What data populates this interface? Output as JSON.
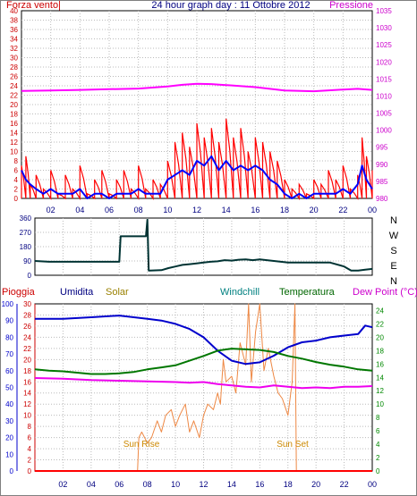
{
  "title": "24 hour graph day : 11 Ottobre 2012",
  "colors": {
    "wind_gust": "#ff0000",
    "wind_avg": "#0000ff",
    "pressure": "#ff00ff",
    "direction": "#003333",
    "humidity": "#0000cc",
    "solar": "#ee8844",
    "temperature": "#007700",
    "dewpoint": "#ee00ee",
    "rain": "#ff0000",
    "grid": "#bbbbbb"
  },
  "x_labels": [
    "02",
    "04",
    "06",
    "08",
    "10",
    "12",
    "14",
    "16",
    "18",
    "20",
    "22",
    "00"
  ],
  "chart_data": [
    {
      "type": "line",
      "left_axis_label": "Forza vento|",
      "right_axis_label": "Pressione",
      "x_range": [
        0,
        24
      ],
      "y_left_range": [
        0,
        40
      ],
      "y_left_ticks": [
        0,
        2,
        4,
        6,
        8,
        10,
        12,
        14,
        16,
        18,
        20,
        22,
        24,
        26,
        28,
        30,
        32,
        34,
        36,
        38,
        40
      ],
      "y_right_range": [
        980,
        1035
      ],
      "y_right_ticks": [
        980,
        985,
        990,
        995,
        1000,
        1005,
        1010,
        1015,
        1020,
        1025,
        1030,
        1035
      ],
      "grid": true,
      "series": [
        {
          "name": "Pressione",
          "axis": "right",
          "x": [
            0,
            2,
            4,
            6,
            8,
            10,
            11,
            12,
            13,
            14,
            16,
            18,
            20,
            22,
            23,
            24
          ],
          "values": [
            1011.5,
            1011.6,
            1011.8,
            1012.0,
            1012.2,
            1012.8,
            1013.3,
            1013.6,
            1013.5,
            1013.2,
            1012.6,
            1011.6,
            1011.4,
            1011.9,
            1012.1,
            1011.8
          ]
        },
        {
          "name": "wind_gust",
          "axis": "left",
          "x": [
            0,
            0.3,
            0.6,
            1,
            1.5,
            2,
            2.5,
            3,
            3.5,
            4,
            4.5,
            5,
            5.5,
            6,
            6.5,
            7,
            7.5,
            8,
            8.5,
            9,
            9.5,
            10,
            10.5,
            11,
            11.5,
            12,
            12.5,
            13,
            13.5,
            14,
            14.5,
            15,
            15.5,
            16,
            16.5,
            17,
            17.5,
            18,
            18.5,
            19,
            19.5,
            20,
            20.5,
            21,
            21.5,
            22,
            22.5,
            23,
            23.3,
            23.6,
            24
          ],
          "values": [
            7,
            9,
            3,
            5,
            2,
            6,
            1,
            5,
            2,
            7,
            1,
            4,
            6,
            1,
            4,
            6,
            2,
            7,
            2,
            4,
            3,
            8,
            12,
            14,
            11,
            16,
            13,
            15,
            12,
            17,
            13,
            15,
            10,
            13,
            12,
            10,
            8,
            4,
            2,
            3,
            1,
            4,
            3,
            6,
            4,
            7,
            2,
            5,
            13,
            9,
            6
          ]
        },
        {
          "name": "wind_avg",
          "axis": "left",
          "x": [
            0,
            0.3,
            0.6,
            1,
            1.5,
            2,
            2.5,
            3,
            3.5,
            4,
            4.5,
            5,
            5.5,
            6,
            6.5,
            7,
            7.5,
            8,
            8.5,
            9,
            9.5,
            10,
            10.5,
            11,
            11.5,
            12,
            12.5,
            13,
            13.5,
            14,
            14.5,
            15,
            15.5,
            16,
            16.5,
            17,
            17.5,
            18,
            18.5,
            19,
            19.5,
            20,
            20.5,
            21,
            21.5,
            22,
            22.5,
            23,
            23.3,
            23.6,
            24
          ],
          "values": [
            6,
            4,
            3,
            2,
            1,
            2,
            1,
            1,
            1,
            2,
            0,
            1,
            1,
            0,
            1,
            1,
            1,
            2,
            1,
            1,
            1,
            4,
            5,
            6,
            5,
            8,
            7,
            9,
            6,
            8,
            6,
            7,
            6,
            7,
            6,
            4,
            3,
            1,
            0,
            1,
            0,
            1,
            1,
            1,
            1,
            2,
            1,
            3,
            7,
            4,
            2
          ]
        }
      ]
    },
    {
      "type": "line",
      "y_range": [
        0,
        360
      ],
      "y_ticks": [
        0,
        90,
        180,
        270,
        360
      ],
      "compass": [
        "N",
        "W",
        "S",
        "E",
        "N"
      ],
      "grid": true,
      "series": [
        {
          "name": "direction",
          "x": [
            0,
            1,
            2,
            3,
            4,
            5,
            6,
            6.1,
            7,
            7.9,
            8,
            8.1,
            8.2,
            9,
            9.5,
            10,
            10.5,
            11,
            11.5,
            12,
            12.5,
            13,
            13.5,
            14,
            14.5,
            15,
            15.5,
            16,
            16.5,
            17,
            17.5,
            18,
            19,
            20,
            21,
            22,
            22.5,
            23,
            23.5,
            24
          ],
          "values": [
            90,
            85,
            85,
            85,
            85,
            85,
            85,
            245,
            245,
            245,
            350,
            30,
            30,
            32,
            45,
            55,
            65,
            70,
            75,
            80,
            85,
            88,
            95,
            92,
            98,
            100,
            95,
            100,
            95,
            90,
            85,
            80,
            80,
            80,
            80,
            55,
            30,
            30,
            35,
            40
          ]
        }
      ]
    },
    {
      "type": "line",
      "legend": [
        "Pioggia",
        "Umidita",
        "Solar",
        "Windchill",
        "Temperatura",
        "Dew Point (°C)"
      ],
      "annotations": [
        "Sun Rise",
        "Sun Set"
      ],
      "y_humidity_range": [
        0,
        100
      ],
      "y_humidity_ticks": [
        0,
        10,
        20,
        30,
        40,
        50,
        60,
        70,
        80,
        90,
        100
      ],
      "y_rain_range": [
        0,
        30
      ],
      "y_rain_ticks": [
        0,
        2,
        4,
        6,
        8,
        10,
        12,
        14,
        16,
        18,
        20,
        22,
        24,
        26,
        28,
        30
      ],
      "y_temp_range": [
        0,
        25
      ],
      "y_temp_ticks": [
        0,
        2,
        4,
        6,
        8,
        10,
        12,
        14,
        16,
        18,
        20,
        22,
        24
      ],
      "grid": true,
      "series": [
        {
          "name": "Umidita",
          "axis": "humidity",
          "x": [
            0,
            2,
            4,
            6,
            8,
            9,
            10,
            11,
            12,
            13,
            14,
            15,
            16,
            17,
            18,
            19,
            20,
            21,
            22,
            23,
            23.5,
            24
          ],
          "values": [
            91,
            91,
            92,
            93,
            91,
            90,
            88,
            85,
            80,
            72,
            66,
            64,
            65,
            69,
            74,
            77,
            78,
            80,
            81,
            82,
            87,
            86
          ]
        },
        {
          "name": "Temperatura",
          "axis": "temp",
          "x": [
            0,
            1,
            2,
            3,
            4,
            5,
            6,
            7,
            8,
            9,
            10,
            11,
            12,
            13,
            14,
            15,
            16,
            17,
            18,
            19,
            20,
            21,
            22,
            23,
            24
          ],
          "values": [
            15.2,
            15.0,
            14.9,
            14.7,
            14.5,
            14.5,
            14.6,
            14.8,
            15.2,
            15.5,
            15.8,
            16.5,
            17.2,
            18.0,
            18.3,
            18.2,
            18.1,
            17.8,
            17.2,
            16.8,
            16.3,
            15.9,
            15.6,
            15.2,
            15.0
          ]
        },
        {
          "name": "Dew Point",
          "axis": "temp",
          "x": [
            0,
            2,
            4,
            6,
            8,
            10,
            11,
            12,
            13,
            14,
            15,
            16,
            17,
            18,
            19,
            20,
            21,
            22,
            23,
            24
          ],
          "values": [
            13.9,
            13.8,
            13.6,
            13.5,
            13.4,
            13.3,
            13.2,
            13.3,
            13.0,
            12.8,
            12.6,
            12.5,
            12.8,
            12.6,
            12.4,
            12.5,
            12.4,
            12.6,
            12.6,
            12.7
          ]
        },
        {
          "name": "Solar",
          "axis": "rain",
          "x": [
            7.3,
            7.4,
            7.6,
            8,
            8.3,
            8.7,
            9,
            9.3,
            9.7,
            10,
            10.3,
            10.7,
            11,
            11.3,
            11.7,
            12,
            12.3,
            12.7,
            13,
            13.2,
            13.4,
            13.6,
            14,
            14.3,
            14.6,
            15,
            15.2,
            15.4,
            15.7,
            16,
            16.3,
            16.6,
            17,
            17.3,
            17.6,
            18,
            18.3,
            18.5,
            18.6
          ],
          "values": [
            0,
            6,
            7,
            5,
            6,
            9,
            7,
            10,
            11,
            8,
            10,
            12,
            7,
            9,
            6,
            10,
            12,
            11,
            14,
            12,
            20,
            16,
            17,
            14,
            23,
            19,
            30,
            16,
            25,
            30,
            18,
            22,
            17,
            14,
            13,
            10,
            16,
            30,
            0
          ]
        },
        {
          "name": "Pioggia",
          "axis": "rain",
          "x": [
            0,
            24
          ],
          "values": [
            0,
            0
          ]
        }
      ]
    }
  ]
}
